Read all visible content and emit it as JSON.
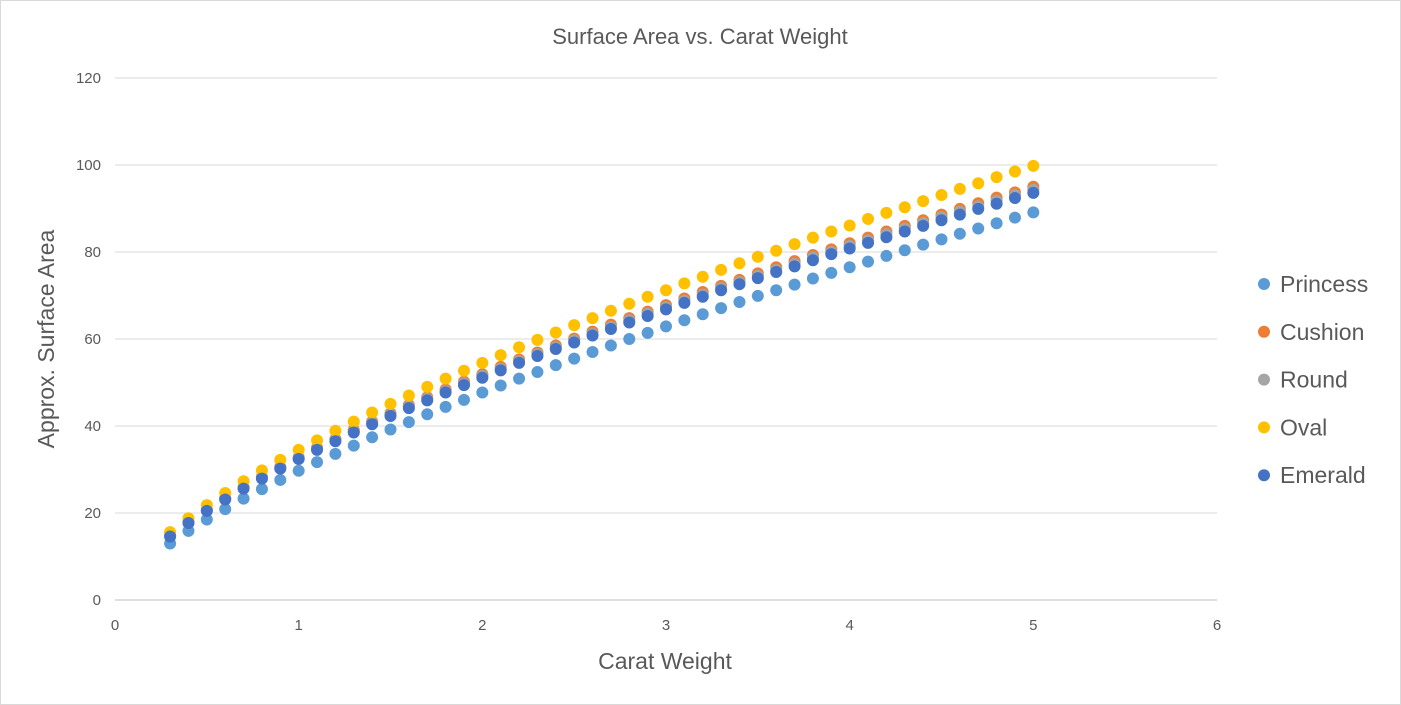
{
  "chart_data": {
    "type": "scatter",
    "title": "Surface Area vs. Carat Weight",
    "xlabel": "Carat Weight",
    "ylabel": "Approx. Surface Area",
    "xlim": [
      0,
      6
    ],
    "ylim": [
      0,
      120
    ],
    "xticks": [
      0,
      1,
      2,
      3,
      4,
      5,
      6
    ],
    "yticks": [
      0,
      20,
      40,
      60,
      80,
      100,
      120
    ],
    "grid": "horizontal",
    "legend_position": "right",
    "x": [
      0.3,
      0.4,
      0.5,
      0.6,
      0.7,
      0.8,
      0.9,
      1.0,
      1.1,
      1.2,
      1.3,
      1.4,
      1.5,
      1.6,
      1.7,
      1.8,
      1.9,
      2.0,
      2.1,
      2.2,
      2.3,
      2.4,
      2.5,
      2.6,
      2.7,
      2.8,
      2.9,
      3.0,
      3.1,
      3.2,
      3.3,
      3.4,
      3.5,
      3.6,
      3.7,
      3.8,
      3.9,
      4.0,
      4.1,
      4.2,
      4.3,
      4.4,
      4.5,
      4.6,
      4.7,
      4.8,
      4.9,
      5.0
    ],
    "series": [
      {
        "name": "Princess",
        "color": "#5B9BD5",
        "values": [
          13.0,
          15.9,
          18.5,
          20.9,
          23.3,
          25.5,
          27.6,
          29.7,
          31.7,
          33.6,
          35.5,
          37.4,
          39.2,
          40.9,
          42.7,
          44.4,
          46.0,
          47.7,
          49.3,
          50.9,
          52.4,
          54.0,
          55.5,
          57.0,
          58.5,
          60.0,
          61.4,
          62.9,
          64.3,
          65.7,
          67.1,
          68.5,
          69.9,
          71.2,
          72.5,
          73.9,
          75.2,
          76.5,
          77.8,
          79.1,
          80.4,
          81.7,
          82.9,
          84.2,
          85.4,
          86.6,
          87.9,
          89.1
        ]
      },
      {
        "name": "Cushion",
        "color": "#ED7D31",
        "values": [
          14.8,
          17.9,
          20.8,
          23.4,
          25.9,
          28.3,
          30.6,
          32.8,
          35.0,
          37.0,
          39.1,
          41.0,
          42.9,
          44.8,
          46.6,
          48.4,
          50.2,
          51.9,
          53.6,
          55.3,
          56.9,
          58.5,
          60.1,
          61.7,
          63.3,
          64.8,
          66.3,
          67.8,
          69.3,
          70.8,
          72.2,
          73.6,
          75.1,
          76.5,
          77.9,
          79.3,
          80.6,
          82.0,
          83.3,
          84.7,
          86.0,
          87.3,
          88.6,
          89.9,
          91.2,
          92.5,
          93.7,
          95.0
        ]
      },
      {
        "name": "Round",
        "color": "#A5A5A5",
        "values": [
          14.7,
          17.8,
          20.6,
          23.3,
          25.8,
          28.1,
          30.4,
          32.6,
          34.7,
          36.8,
          38.8,
          40.7,
          42.6,
          44.5,
          46.3,
          48.0,
          49.8,
          51.5,
          53.2,
          54.9,
          56.5,
          58.1,
          59.7,
          61.2,
          62.8,
          64.3,
          65.8,
          67.3,
          68.8,
          70.2,
          71.7,
          73.1,
          74.5,
          75.9,
          77.3,
          78.7,
          80.0,
          81.4,
          82.7,
          84.1,
          85.4,
          86.7,
          88.0,
          89.3,
          90.5,
          91.8,
          93.1,
          94.3
        ]
      },
      {
        "name": "Oval",
        "color": "#FFC000",
        "values": [
          15.6,
          18.8,
          21.8,
          24.6,
          27.3,
          29.8,
          32.2,
          34.5,
          36.7,
          38.9,
          41.0,
          43.1,
          45.1,
          47.0,
          49.0,
          50.9,
          52.7,
          54.5,
          56.3,
          58.1,
          59.8,
          61.5,
          63.2,
          64.8,
          66.5,
          68.1,
          69.7,
          71.2,
          72.8,
          74.3,
          75.9,
          77.4,
          78.9,
          80.3,
          81.8,
          83.3,
          84.7,
          86.1,
          87.6,
          89.0,
          90.3,
          91.7,
          93.1,
          94.5,
          95.8,
          97.2,
          98.5,
          99.8
        ]
      },
      {
        "name": "Emerald",
        "color": "#4472C4",
        "values": [
          14.6,
          17.7,
          20.5,
          23.1,
          25.6,
          27.9,
          30.2,
          32.4,
          34.5,
          36.5,
          38.5,
          40.4,
          42.3,
          44.1,
          45.9,
          47.7,
          49.4,
          51.1,
          52.8,
          54.5,
          56.1,
          57.7,
          59.2,
          60.8,
          62.3,
          63.8,
          65.3,
          66.8,
          68.3,
          69.7,
          71.2,
          72.6,
          74.0,
          75.4,
          76.7,
          78.1,
          79.5,
          80.8,
          82.1,
          83.4,
          84.7,
          86.0,
          87.3,
          88.6,
          89.9,
          91.1,
          92.4,
          93.6
        ]
      }
    ]
  }
}
